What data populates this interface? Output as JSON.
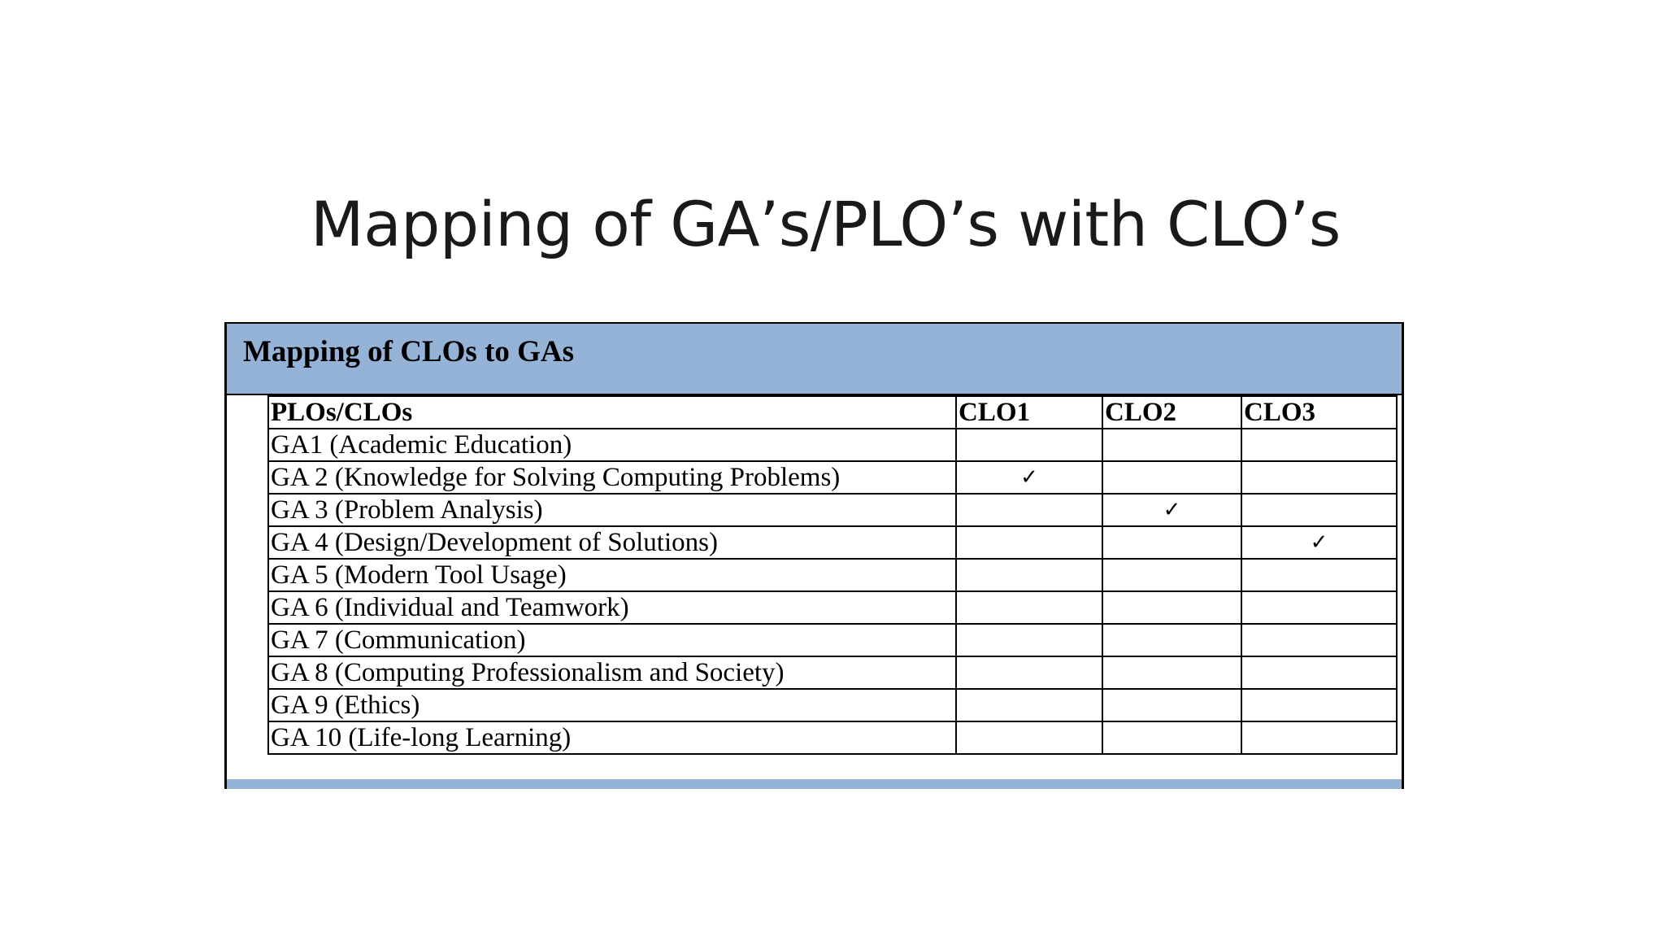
{
  "slide": {
    "title": "Mapping of GA’s/PLO’s with CLO’s"
  },
  "table": {
    "caption": "Mapping of CLOs to GAs",
    "header_color": "#95b3d7",
    "columns": [
      "PLOs/CLOs",
      "CLO1",
      "CLO2",
      "CLO3"
    ],
    "rows": [
      {
        "label": "GA1 (Academic Education)",
        "marks": [
          "",
          "",
          ""
        ]
      },
      {
        "label": "GA 2 (Knowledge for Solving Computing Problems)",
        "marks": [
          "✓",
          "",
          ""
        ]
      },
      {
        "label": "GA 3 (Problem Analysis)",
        "marks": [
          "",
          "✓",
          ""
        ]
      },
      {
        "label": "GA 4 (Design/Development of Solutions)",
        "marks": [
          "",
          "",
          "✓"
        ]
      },
      {
        "label": "GA 5 (Modern Tool Usage)",
        "marks": [
          "",
          "",
          ""
        ]
      },
      {
        "label": "GA 6 (Individual and Teamwork)",
        "marks": [
          "",
          "",
          ""
        ]
      },
      {
        "label": "GA 7 (Communication)",
        "marks": [
          "",
          "",
          ""
        ]
      },
      {
        "label": "GA 8 (Computing Professionalism and Society)",
        "marks": [
          "",
          "",
          ""
        ]
      },
      {
        "label": "GA 9 (Ethics)",
        "marks": [
          "",
          "",
          ""
        ]
      },
      {
        "label": "GA 10 (Life-long Learning)",
        "marks": [
          "",
          "",
          ""
        ]
      }
    ]
  }
}
